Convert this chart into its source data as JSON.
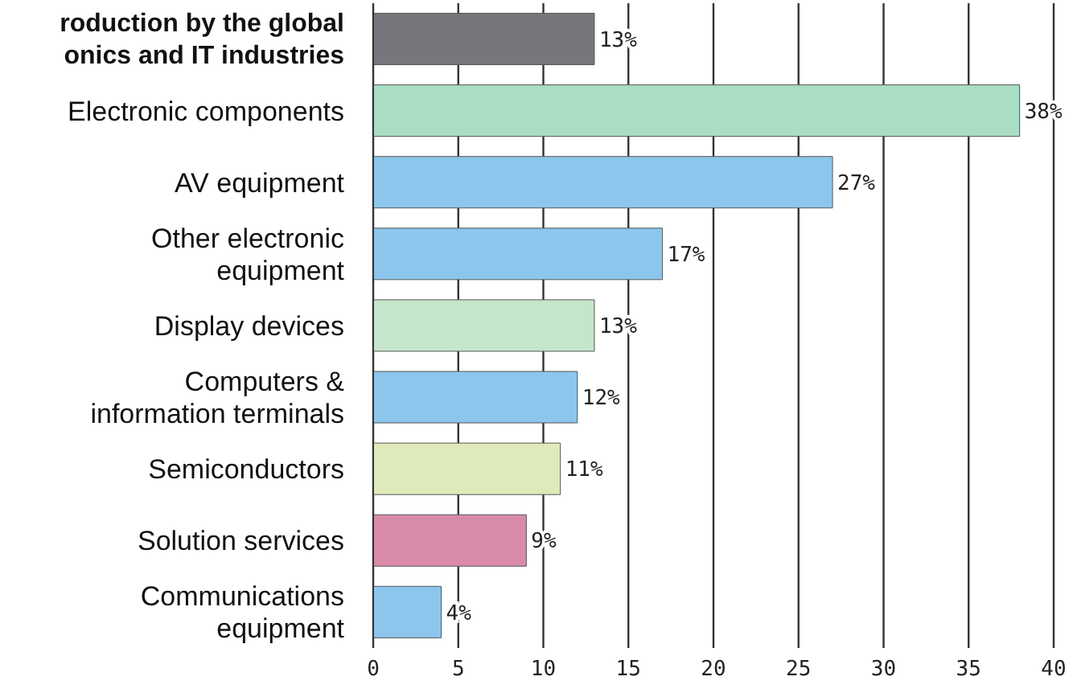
{
  "chart_data": {
    "type": "bar",
    "orientation": "horizontal",
    "categories": [
      "roduction by the global onics and IT industries",
      "Electronic components",
      "AV equipment",
      "Other electronic equipment",
      "Display devices",
      "Computers & information terminals",
      "Semiconductors",
      "Solution services",
      "Communications equipment"
    ],
    "values": [
      13,
      38,
      27,
      17,
      13,
      12,
      11,
      9,
      4
    ],
    "colors": [
      "#75777c",
      "#a9dec4",
      "#8cc6ec",
      "#8cc6ec",
      "#c6e6cb",
      "#8cc6ec",
      "#dfeabb",
      "#d98aa9",
      "#8cc6ec"
    ],
    "value_labels": [
      "13%",
      "38%",
      "27%",
      "17%",
      "13%",
      "12%",
      "11%",
      "9%",
      "4%"
    ],
    "xlim": [
      0,
      40
    ],
    "xticks": [
      0,
      5,
      10,
      15,
      20,
      25,
      30,
      35,
      40
    ],
    "grid": "x"
  }
}
